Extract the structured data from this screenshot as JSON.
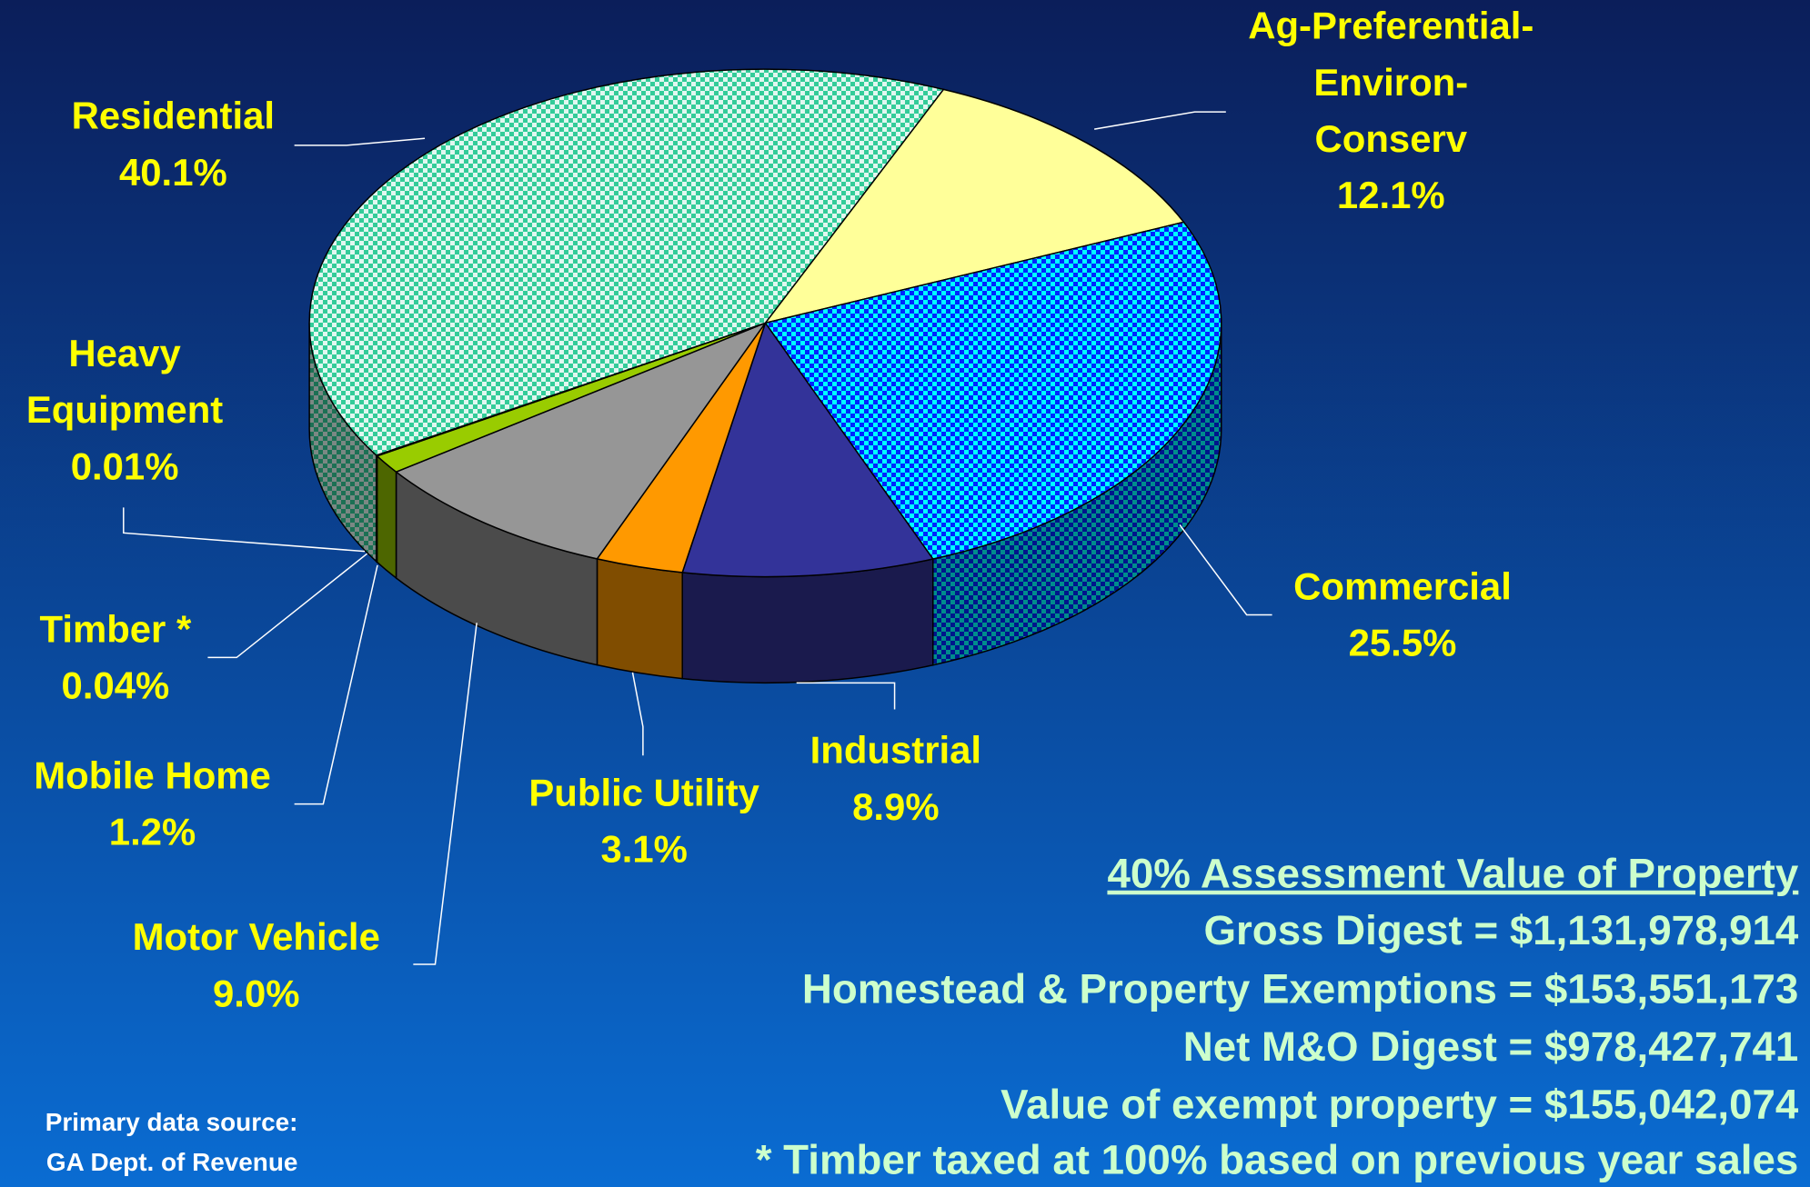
{
  "chart_data": {
    "type": "pie",
    "categories": [
      "Ag-Preferential-\nEnviron-\nConserv",
      "Commercial",
      "Industrial",
      "Public Utility",
      "Motor Vehicle",
      "Mobile Home",
      "Timber *",
      "Heavy\nEquipment",
      "Residential"
    ],
    "values": [
      12.1,
      25.5,
      8.9,
      3.1,
      9.0,
      1.2,
      0.04,
      0.01,
      40.1
    ],
    "value_labels": [
      "12.1%",
      "25.5%",
      "8.9%",
      "3.1%",
      "9.0%",
      "1.2%",
      "0.04%",
      "0.01%",
      "40.1%"
    ],
    "colors": [
      "#ffff99",
      "#00ffff",
      "#333399",
      "#ff9900",
      "#969696",
      "#99cc00",
      "#808000",
      "#99cc00",
      "#33cc99"
    ],
    "pattern_colors": [
      null,
      "#0000ff",
      null,
      null,
      null,
      null,
      null,
      null,
      "#ffffff"
    ],
    "label_color": "#ffff00"
  },
  "summary": {
    "heading": "40% Assessment Value of Property",
    "lines": [
      "Gross Digest = $1,131,978,914",
      "Homestead & Property Exemptions = $153,551,173",
      "Net M&O Digest = $978,427,741",
      "Value of exempt property = $155,042,074",
      "* Timber taxed at 100% based on previous year sales"
    ],
    "color": "#ccffcc"
  },
  "source": [
    "Primary data source:",
    "GA Dept. of Revenue"
  ]
}
